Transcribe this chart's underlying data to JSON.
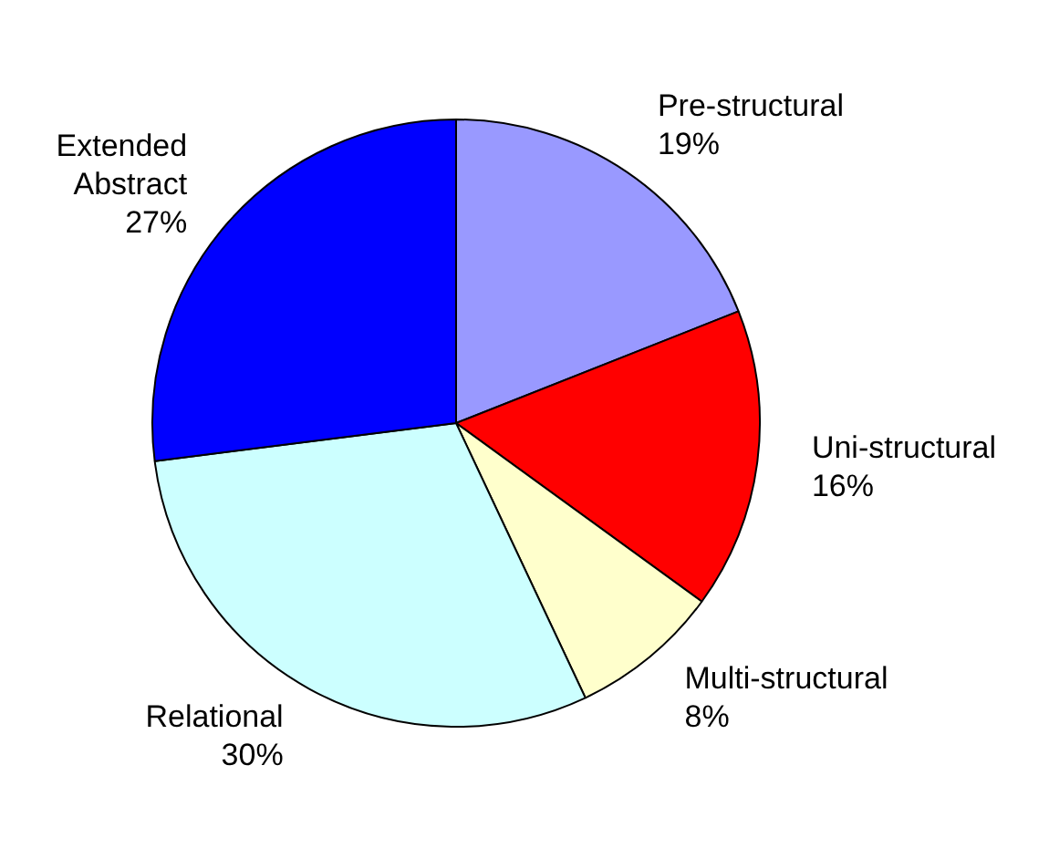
{
  "chart_data": {
    "type": "pie",
    "categories": [
      "Pre-structural",
      "Uni-structural",
      "Multi-structural",
      "Relational",
      "Extended Abstract"
    ],
    "values": [
      19,
      16,
      8,
      30,
      27
    ],
    "value_labels": [
      "19%",
      "16%",
      "8%",
      "30%",
      "27%"
    ],
    "colors": [
      "#9999ff",
      "#ff0000",
      "#ffffcc",
      "#ccffff",
      "#0000ff"
    ],
    "legend": false
  }
}
